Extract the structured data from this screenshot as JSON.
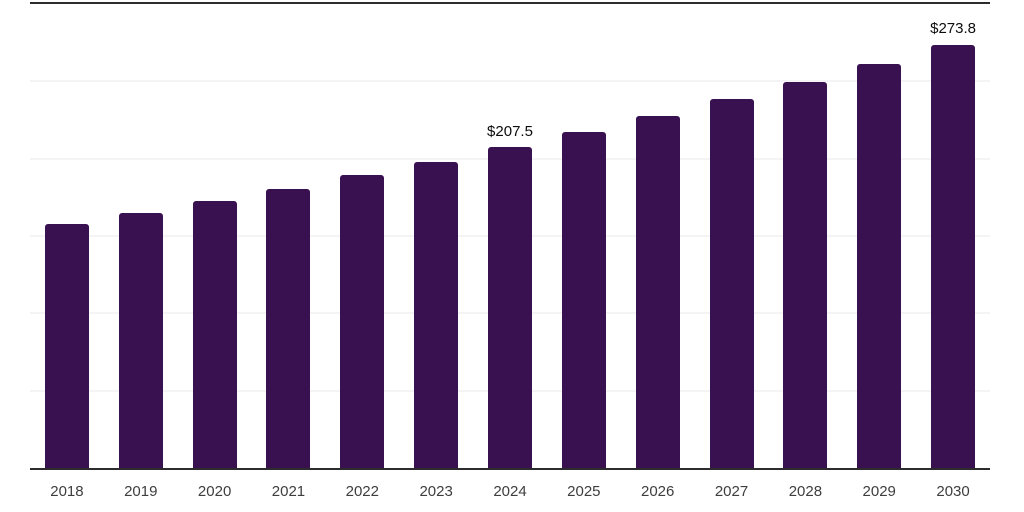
{
  "chart_data": {
    "type": "bar",
    "title": "",
    "xlabel": "",
    "ylabel": "",
    "categories": [
      "2018",
      "2019",
      "2020",
      "2021",
      "2022",
      "2023",
      "2024",
      "2025",
      "2026",
      "2027",
      "2028",
      "2029",
      "2030"
    ],
    "values": [
      157.5,
      164.9,
      172.7,
      180.7,
      189.2,
      198.1,
      207.5,
      217.3,
      227.6,
      238.4,
      249.6,
      261.4,
      273.8
    ],
    "point_labels": [
      "",
      "",
      "",
      "",
      "",
      "",
      "$207.5",
      "",
      "",
      "",
      "",
      "",
      "$273.8"
    ],
    "ylim": [
      0,
      300
    ],
    "gridline_values": [
      50,
      100,
      150,
      200,
      250
    ],
    "grid": true,
    "legend_position": "none",
    "style": {
      "bar_color": "#3A1150",
      "gridline_color": "#f4f3f5",
      "top_border_color": "#2c2c2e",
      "axis_line_color": "#2c2c2e",
      "tick_label_color": "#3e3e3e",
      "data_label_color": "#0d0d0d",
      "background": "#ffffff"
    }
  }
}
